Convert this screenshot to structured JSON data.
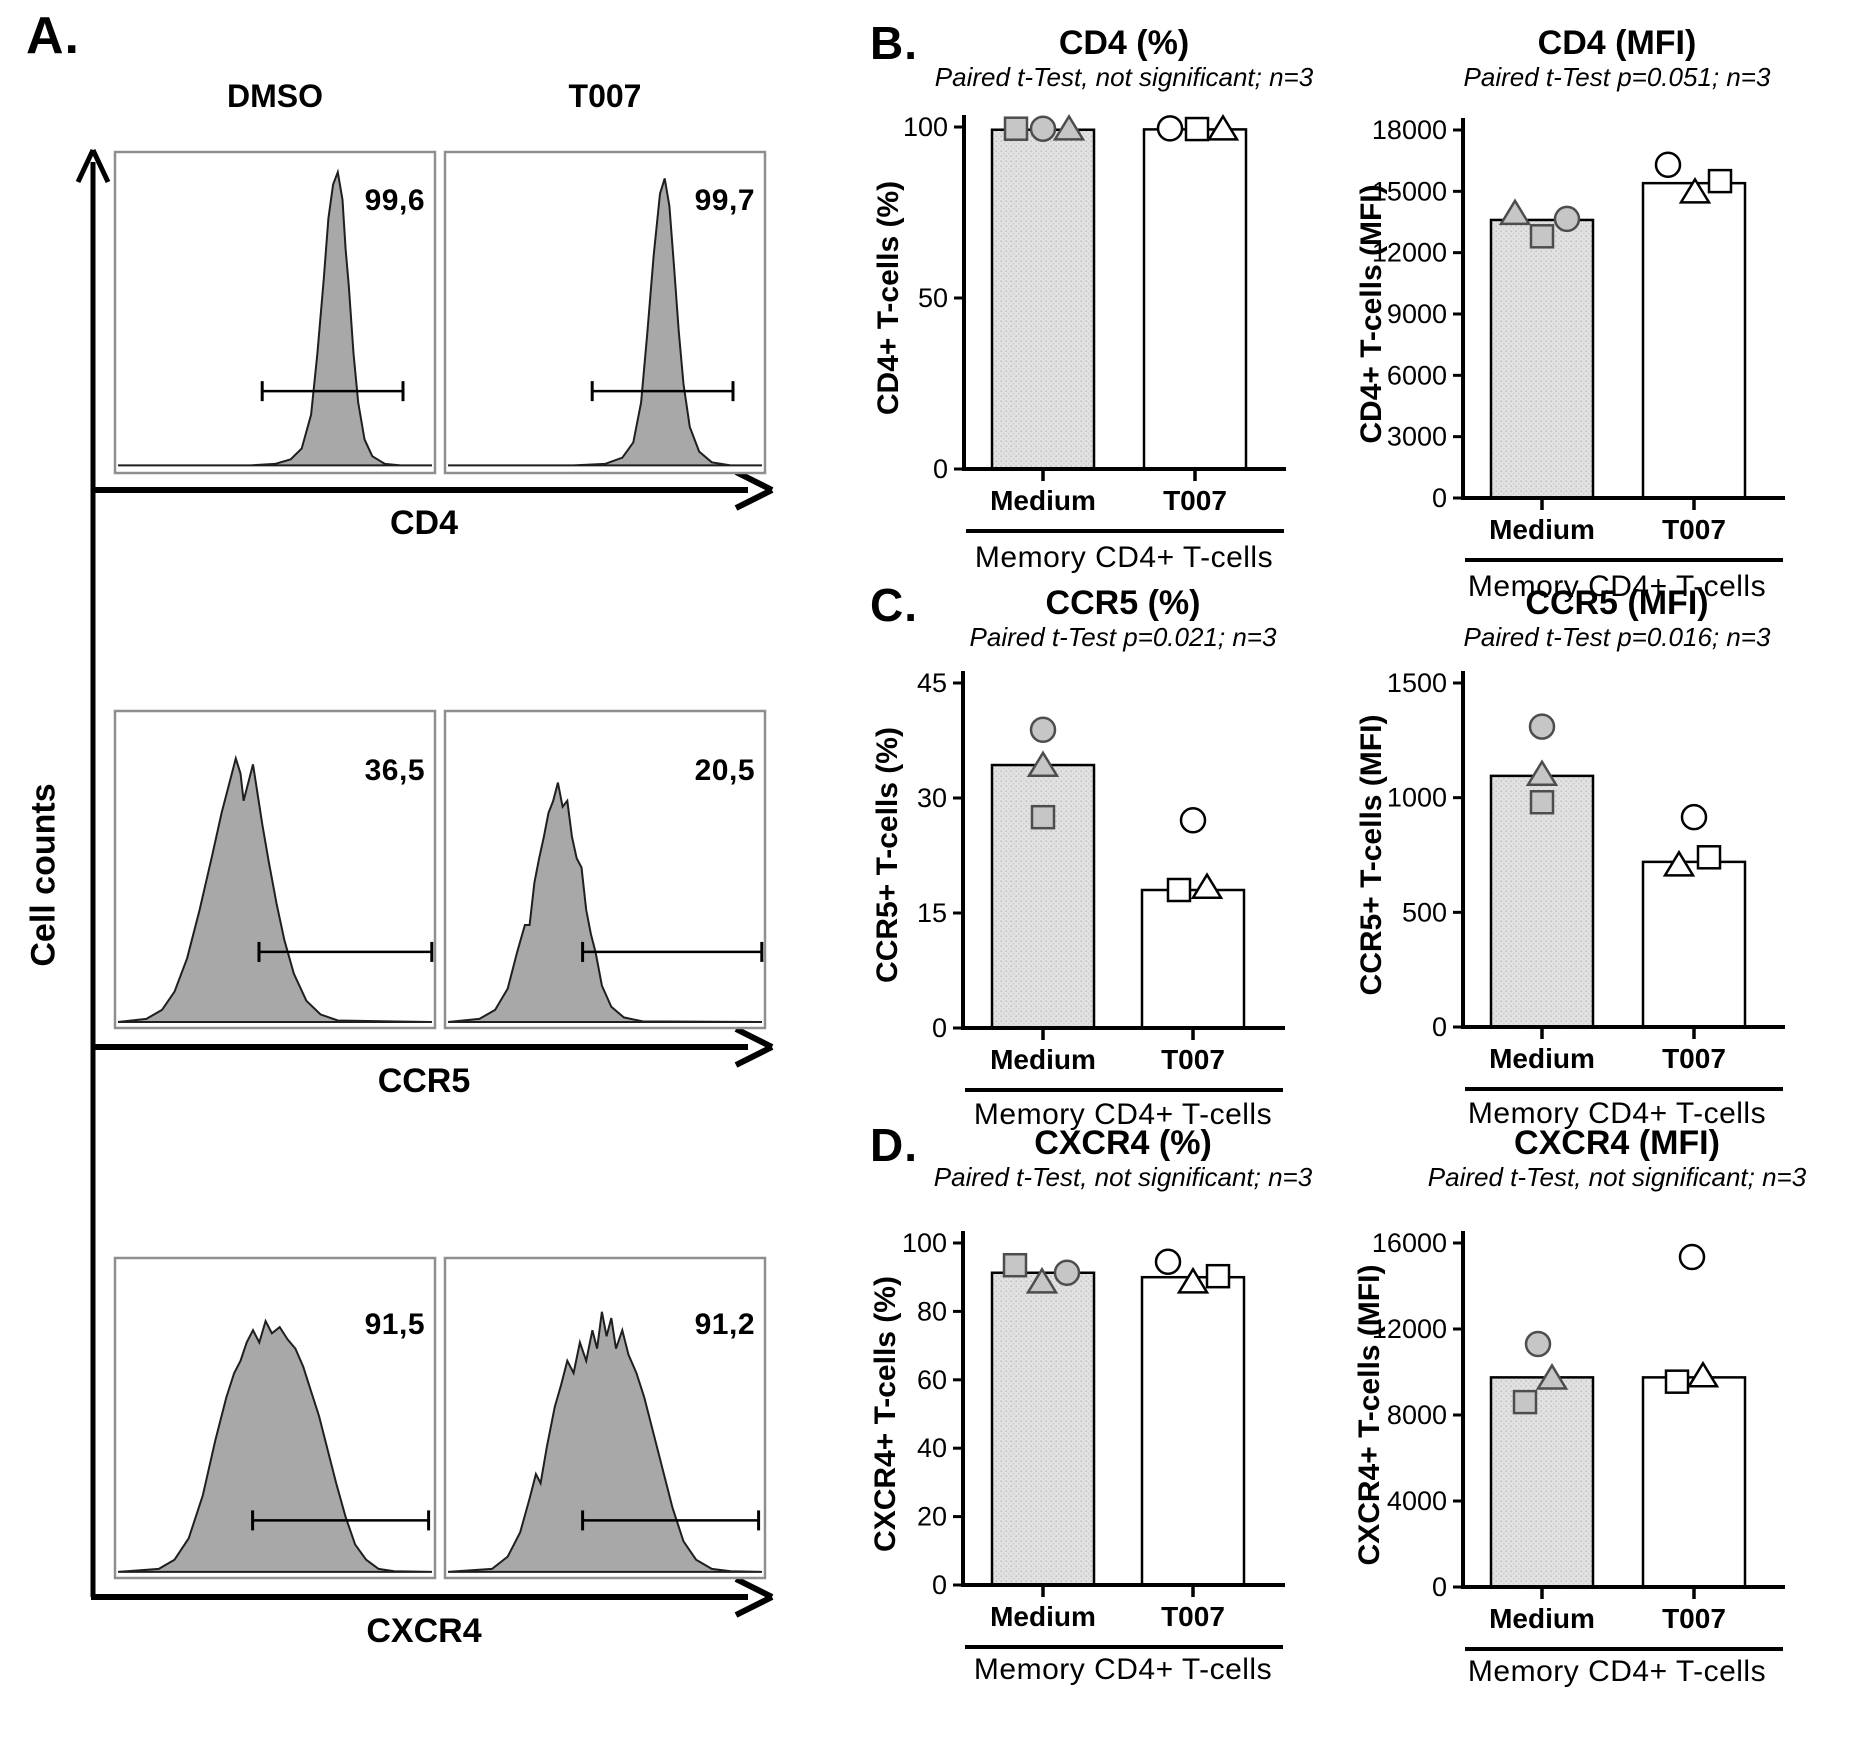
{
  "panel_a": {
    "label": "A.",
    "col_titles": [
      "DMSO",
      "T007"
    ],
    "y_axis_label": "Cell counts",
    "rows": [
      {
        "marker": "CD4",
        "values": [
          "99,6",
          "99,7"
        ],
        "gates": [
          {
            "x1": 0.46,
            "x2": 0.9,
            "y": 0.255
          },
          {
            "x1": 0.46,
            "x2": 0.9,
            "y": 0.255
          }
        ],
        "hists": [
          [
            [
              0,
              0.015
            ],
            [
              0.42,
              0.015
            ],
            [
              0.5,
              0.02
            ],
            [
              0.55,
              0.035
            ],
            [
              0.585,
              0.07
            ],
            [
              0.615,
              0.18
            ],
            [
              0.635,
              0.38
            ],
            [
              0.655,
              0.62
            ],
            [
              0.67,
              0.82
            ],
            [
              0.685,
              0.93
            ],
            [
              0.7,
              0.97
            ],
            [
              0.715,
              0.88
            ],
            [
              0.725,
              0.72
            ],
            [
              0.735,
              0.6
            ],
            [
              0.75,
              0.38
            ],
            [
              0.765,
              0.22
            ],
            [
              0.785,
              0.1
            ],
            [
              0.81,
              0.045
            ],
            [
              0.85,
              0.02
            ],
            [
              0.9,
              0.015
            ],
            [
              1,
              0.015
            ]
          ],
          [
            [
              0,
              0.015
            ],
            [
              0.4,
              0.015
            ],
            [
              0.5,
              0.02
            ],
            [
              0.555,
              0.04
            ],
            [
              0.59,
              0.09
            ],
            [
              0.615,
              0.22
            ],
            [
              0.635,
              0.45
            ],
            [
              0.655,
              0.7
            ],
            [
              0.675,
              0.9
            ],
            [
              0.69,
              0.95
            ],
            [
              0.705,
              0.86
            ],
            [
              0.72,
              0.66
            ],
            [
              0.735,
              0.45
            ],
            [
              0.75,
              0.28
            ],
            [
              0.77,
              0.14
            ],
            [
              0.8,
              0.06
            ],
            [
              0.84,
              0.025
            ],
            [
              0.9,
              0.015
            ],
            [
              1,
              0.015
            ]
          ]
        ]
      },
      {
        "marker": "CCR5",
        "values": [
          "36,5",
          "20,5"
        ],
        "gates": [
          {
            "x1": 0.45,
            "x2": 0.99,
            "y": 0.24
          },
          {
            "x1": 0.43,
            "x2": 0.99,
            "y": 0.24
          }
        ],
        "hists": [
          [
            [
              0,
              0.01
            ],
            [
              0.09,
              0.02
            ],
            [
              0.14,
              0.05
            ],
            [
              0.18,
              0.11
            ],
            [
              0.22,
              0.22
            ],
            [
              0.26,
              0.38
            ],
            [
              0.3,
              0.56
            ],
            [
              0.33,
              0.7
            ],
            [
              0.355,
              0.8
            ],
            [
              0.375,
              0.88
            ],
            [
              0.39,
              0.83
            ],
            [
              0.4,
              0.74
            ],
            [
              0.415,
              0.8
            ],
            [
              0.43,
              0.86
            ],
            [
              0.445,
              0.76
            ],
            [
              0.46,
              0.66
            ],
            [
              0.48,
              0.54
            ],
            [
              0.505,
              0.4
            ],
            [
              0.53,
              0.28
            ],
            [
              0.56,
              0.17
            ],
            [
              0.6,
              0.08
            ],
            [
              0.645,
              0.035
            ],
            [
              0.7,
              0.015
            ],
            [
              1,
              0.01
            ]
          ],
          [
            [
              0,
              0.01
            ],
            [
              0.1,
              0.02
            ],
            [
              0.15,
              0.05
            ],
            [
              0.19,
              0.12
            ],
            [
              0.22,
              0.24
            ],
            [
              0.245,
              0.33
            ],
            [
              0.26,
              0.33
            ],
            [
              0.275,
              0.47
            ],
            [
              0.29,
              0.55
            ],
            [
              0.305,
              0.62
            ],
            [
              0.32,
              0.7
            ],
            [
              0.335,
              0.74
            ],
            [
              0.35,
              0.8
            ],
            [
              0.365,
              0.72
            ],
            [
              0.38,
              0.74
            ],
            [
              0.395,
              0.62
            ],
            [
              0.41,
              0.55
            ],
            [
              0.425,
              0.52
            ],
            [
              0.44,
              0.38
            ],
            [
              0.455,
              0.3
            ],
            [
              0.47,
              0.24
            ],
            [
              0.49,
              0.13
            ],
            [
              0.52,
              0.06
            ],
            [
              0.56,
              0.025
            ],
            [
              0.62,
              0.012
            ],
            [
              1,
              0.01
            ]
          ]
        ]
      },
      {
        "marker": "CXCR4",
        "values": [
          "91,5",
          "91,2"
        ],
        "gates": [
          {
            "x1": 0.43,
            "x2": 0.98,
            "y": 0.18
          },
          {
            "x1": 0.43,
            "x2": 0.98,
            "y": 0.18
          }
        ],
        "hists": [
          [
            [
              0,
              0.01
            ],
            [
              0.13,
              0.02
            ],
            [
              0.18,
              0.05
            ],
            [
              0.225,
              0.12
            ],
            [
              0.27,
              0.26
            ],
            [
              0.31,
              0.44
            ],
            [
              0.345,
              0.58
            ],
            [
              0.37,
              0.66
            ],
            [
              0.39,
              0.7
            ],
            [
              0.41,
              0.76
            ],
            [
              0.43,
              0.8
            ],
            [
              0.45,
              0.76
            ],
            [
              0.47,
              0.83
            ],
            [
              0.49,
              0.79
            ],
            [
              0.515,
              0.81
            ],
            [
              0.54,
              0.77
            ],
            [
              0.565,
              0.74
            ],
            [
              0.59,
              0.68
            ],
            [
              0.615,
              0.6
            ],
            [
              0.64,
              0.52
            ],
            [
              0.665,
              0.42
            ],
            [
              0.695,
              0.3
            ],
            [
              0.725,
              0.19
            ],
            [
              0.755,
              0.1
            ],
            [
              0.79,
              0.05
            ],
            [
              0.83,
              0.02
            ],
            [
              0.88,
              0.012
            ],
            [
              1,
              0.01
            ]
          ],
          [
            [
              0,
              0.01
            ],
            [
              0.14,
              0.02
            ],
            [
              0.19,
              0.06
            ],
            [
              0.23,
              0.14
            ],
            [
              0.26,
              0.25
            ],
            [
              0.28,
              0.33
            ],
            [
              0.295,
              0.3
            ],
            [
              0.315,
              0.42
            ],
            [
              0.34,
              0.55
            ],
            [
              0.36,
              0.62
            ],
            [
              0.38,
              0.7
            ],
            [
              0.4,
              0.66
            ],
            [
              0.42,
              0.76
            ],
            [
              0.44,
              0.7
            ],
            [
              0.46,
              0.8
            ],
            [
              0.475,
              0.74
            ],
            [
              0.49,
              0.86
            ],
            [
              0.505,
              0.78
            ],
            [
              0.52,
              0.84
            ],
            [
              0.535,
              0.74
            ],
            [
              0.555,
              0.8
            ],
            [
              0.575,
              0.72
            ],
            [
              0.6,
              0.66
            ],
            [
              0.625,
              0.58
            ],
            [
              0.655,
              0.46
            ],
            [
              0.685,
              0.34
            ],
            [
              0.715,
              0.22
            ],
            [
              0.75,
              0.11
            ],
            [
              0.79,
              0.05
            ],
            [
              0.84,
              0.02
            ],
            [
              0.9,
              0.012
            ],
            [
              1,
              0.01
            ]
          ]
        ]
      }
    ]
  },
  "panels": {
    "b": "B.",
    "c": "C.",
    "d": "D."
  },
  "chart_data": [
    {
      "id": "cd4-pct",
      "type": "bar",
      "panel": "B.",
      "title": "CD4 (%)",
      "subtitle": "Paired t-Test, not significant; n=3",
      "ylabel": "CD4+ T-cells (%)",
      "categories": [
        "Medium",
        "T007"
      ],
      "group_label": "Memory CD4+  T-cells",
      "ylim": [
        0,
        100
      ],
      "yticks": [
        0,
        50,
        100
      ],
      "bars": [
        99.2,
        99.3
      ],
      "points": [
        {
          "cat": 0,
          "shape": "square",
          "value": 99.5,
          "dx": -27
        },
        {
          "cat": 0,
          "shape": "circle",
          "value": 99.5,
          "dx": 0
        },
        {
          "cat": 0,
          "shape": "triangle",
          "value": 99.3,
          "dx": 26
        },
        {
          "cat": 1,
          "shape": "circle",
          "value": 99.6,
          "dx": -25
        },
        {
          "cat": 1,
          "shape": "square",
          "value": 99.4,
          "dx": 2
        },
        {
          "cat": 1,
          "shape": "triangle",
          "value": 99.3,
          "dx": 28
        }
      ]
    },
    {
      "id": "cd4-mfi",
      "type": "bar",
      "panel": "B.",
      "title": "CD4 (MFI)",
      "subtitle": "Paired t-Test p=0.051; n=3",
      "ylabel": "CD4+ T-cells (MFI)",
      "categories": [
        "Medium",
        "T007"
      ],
      "group_label": "Memory CD4+  T-cells",
      "ylim": [
        0,
        18000
      ],
      "yticks": [
        0,
        3000,
        6000,
        9000,
        12000,
        15000,
        18000
      ],
      "bars": [
        13600,
        15400
      ],
      "points": [
        {
          "cat": 0,
          "shape": "triangle",
          "value": 13900,
          "dx": -27
        },
        {
          "cat": 0,
          "shape": "square",
          "value": 12800,
          "dx": 0
        },
        {
          "cat": 0,
          "shape": "circle",
          "value": 13650,
          "dx": 25
        },
        {
          "cat": 1,
          "shape": "circle",
          "value": 16300,
          "dx": -26
        },
        {
          "cat": 1,
          "shape": "triangle",
          "value": 14950,
          "dx": 1
        },
        {
          "cat": 1,
          "shape": "square",
          "value": 15500,
          "dx": 26
        }
      ]
    },
    {
      "id": "ccr5-pct",
      "type": "bar",
      "panel": "C.",
      "title": "CCR5 (%)",
      "subtitle": "Paired t-Test p=0.021;  n=3",
      "ylabel": "CCR5+ T-cells (%)",
      "categories": [
        "Medium",
        "T007"
      ],
      "group_label": "Memory CD4+  T-cells",
      "ylim": [
        0,
        45
      ],
      "yticks": [
        0,
        15,
        30,
        45
      ],
      "bars": [
        34.3,
        18.0
      ],
      "points": [
        {
          "cat": 0,
          "shape": "circle",
          "value": 38.9,
          "dx": 0
        },
        {
          "cat": 0,
          "shape": "triangle",
          "value": 34.2,
          "dx": 0
        },
        {
          "cat": 0,
          "shape": "square",
          "value": 27.5,
          "dx": 0
        },
        {
          "cat": 1,
          "shape": "circle",
          "value": 27.1,
          "dx": 0
        },
        {
          "cat": 1,
          "shape": "square",
          "value": 18.0,
          "dx": -14
        },
        {
          "cat": 1,
          "shape": "triangle",
          "value": 18.3,
          "dx": 14
        }
      ]
    },
    {
      "id": "ccr5-mfi",
      "type": "bar",
      "panel": "C.",
      "title": "CCR5 (MFI)",
      "subtitle": "Paired t-Test p=0.016;  n=3",
      "ylabel": "CCR5+ T-cells (MFI)",
      "categories": [
        "Medium",
        "T007"
      ],
      "group_label": "Memory CD4+  T-cells",
      "ylim": [
        0,
        1500
      ],
      "yticks": [
        0,
        500,
        1000,
        1500
      ],
      "bars": [
        1095,
        720
      ],
      "points": [
        {
          "cat": 0,
          "shape": "circle",
          "value": 1310,
          "dx": 0
        },
        {
          "cat": 0,
          "shape": "triangle",
          "value": 1100,
          "dx": 0
        },
        {
          "cat": 0,
          "shape": "square",
          "value": 980,
          "dx": 0
        },
        {
          "cat": 1,
          "shape": "circle",
          "value": 915,
          "dx": 0
        },
        {
          "cat": 1,
          "shape": "triangle",
          "value": 705,
          "dx": -15
        },
        {
          "cat": 1,
          "shape": "square",
          "value": 740,
          "dx": 15
        }
      ]
    },
    {
      "id": "cxcr4-pct",
      "type": "bar",
      "panel": "D.",
      "title": "CXCR4 (%)",
      "subtitle": "Paired t-Test, not significant;  n=3",
      "ylabel": "CXCR4+ T-cells (%)",
      "categories": [
        "Medium",
        "T007"
      ],
      "group_label": "Memory CD4+  T-cells",
      "ylim": [
        0,
        100
      ],
      "yticks": [
        0,
        20,
        40,
        60,
        80,
        100
      ],
      "bars": [
        91.3,
        90.0
      ],
      "points": [
        {
          "cat": 0,
          "shape": "square",
          "value": 93.5,
          "dx": -28
        },
        {
          "cat": 0,
          "shape": "triangle",
          "value": 88.5,
          "dx": -1
        },
        {
          "cat": 0,
          "shape": "circle",
          "value": 91.3,
          "dx": 24
        },
        {
          "cat": 1,
          "shape": "circle",
          "value": 94.5,
          "dx": -25
        },
        {
          "cat": 1,
          "shape": "triangle",
          "value": 88.5,
          "dx": 0
        },
        {
          "cat": 1,
          "shape": "square",
          "value": 90.3,
          "dx": 25
        }
      ]
    },
    {
      "id": "cxcr4-mfi",
      "type": "bar",
      "panel": "D.",
      "title": "CXCR4 (MFI)",
      "subtitle": "Paired t-Test, not significant;  n=3",
      "ylabel": "CXCR4+ T-cells (MFI)",
      "categories": [
        "Medium",
        "T007"
      ],
      "group_label": "Memory CD4+  T-cells",
      "ylim": [
        0,
        16000
      ],
      "yticks": [
        0,
        4000,
        8000,
        12000,
        16000
      ],
      "bars": [
        9750,
        9750
      ],
      "points": [
        {
          "cat": 0,
          "shape": "circle",
          "value": 11300,
          "dx": -4
        },
        {
          "cat": 0,
          "shape": "square",
          "value": 8600,
          "dx": -17
        },
        {
          "cat": 0,
          "shape": "triangle",
          "value": 9700,
          "dx": 10
        },
        {
          "cat": 1,
          "shape": "circle",
          "value": 15350,
          "dx": -2
        },
        {
          "cat": 1,
          "shape": "square",
          "value": 9550,
          "dx": -17
        },
        {
          "cat": 1,
          "shape": "triangle",
          "value": 9800,
          "dx": 9
        }
      ]
    }
  ]
}
